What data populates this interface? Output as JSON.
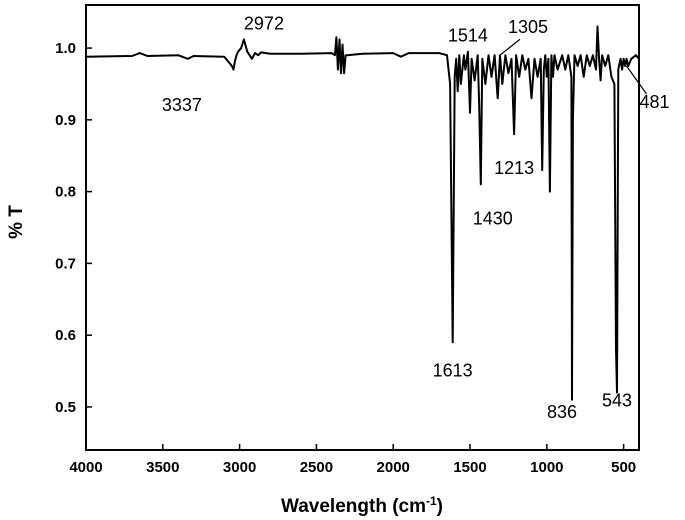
{
  "chart_data": {
    "type": "line",
    "xlabel_main": "Wavelength (cm",
    "xlabel_sup": "-1",
    "xlabel_tail": ")",
    "ylabel": "% T",
    "xlim": [
      4000,
      400
    ],
    "ylim": [
      0.44,
      1.06
    ],
    "x_ticks": [
      4000,
      3500,
      3000,
      2500,
      2000,
      1500,
      1000,
      500
    ],
    "y_ticks": [
      0.5,
      0.6,
      0.7,
      0.8,
      0.9,
      1.0
    ],
    "x_tick_labels": [
      "4000",
      "3500",
      "3000",
      "2500",
      "2000",
      "1500",
      "1000",
      "500"
    ],
    "y_tick_labels": [
      "0.5",
      "0.6",
      "0.7",
      "0.8",
      "0.9",
      "1.0"
    ],
    "grid": false,
    "series": [
      {
        "x": [
          4000,
          3700,
          3650,
          3600,
          3400,
          3337,
          3300,
          3100,
          3050,
          3040,
          3030,
          3020,
          3010,
          2990,
          2972,
          2950,
          2920,
          2900,
          2880,
          2860,
          2800,
          2600,
          2400,
          2380,
          2370,
          2360,
          2350,
          2340,
          2330,
          2320,
          2310,
          2300,
          2200,
          2000,
          1950,
          1900,
          1700,
          1650,
          1630,
          1613,
          1600,
          1590,
          1580,
          1570,
          1560,
          1540,
          1530,
          1514,
          1500,
          1490,
          1470,
          1450,
          1440,
          1430,
          1420,
          1400,
          1380,
          1360,
          1340,
          1320,
          1305,
          1290,
          1270,
          1250,
          1230,
          1213,
          1200,
          1180,
          1160,
          1140,
          1120,
          1100,
          1080,
          1060,
          1040,
          1030,
          1020,
          1010,
          1000,
          990,
          980,
          970,
          960,
          950,
          930,
          900,
          880,
          860,
          840,
          836,
          830,
          820,
          800,
          780,
          760,
          740,
          720,
          700,
          680,
          670,
          660,
          650,
          640,
          620,
          600,
          580,
          560,
          550,
          543,
          535,
          530,
          520,
          510,
          500,
          490,
          481,
          470,
          450,
          420,
          400
        ],
        "y": [
          0.988,
          0.989,
          0.993,
          0.989,
          0.99,
          0.985,
          0.989,
          0.988,
          0.975,
          0.97,
          0.982,
          0.99,
          0.995,
          1.0,
          1.012,
          0.995,
          0.985,
          0.993,
          0.99,
          0.994,
          0.992,
          0.992,
          0.993,
          0.99,
          1.015,
          0.97,
          1.012,
          0.965,
          1.005,
          0.965,
          0.99,
          0.99,
          0.992,
          0.993,
          0.988,
          0.993,
          0.993,
          0.99,
          0.95,
          0.59,
          0.96,
          0.985,
          0.94,
          0.99,
          0.95,
          0.99,
          0.97,
          0.995,
          0.91,
          0.985,
          0.955,
          0.99,
          0.92,
          0.81,
          0.985,
          0.95,
          0.99,
          0.96,
          0.99,
          0.93,
          0.99,
          0.95,
          0.99,
          0.965,
          0.985,
          0.88,
          0.99,
          0.96,
          0.99,
          0.97,
          0.985,
          0.93,
          0.985,
          0.96,
          0.985,
          0.83,
          0.97,
          0.99,
          0.96,
          0.985,
          0.8,
          0.99,
          0.96,
          0.99,
          0.97,
          0.99,
          0.97,
          0.99,
          0.96,
          0.51,
          0.9,
          0.99,
          0.975,
          0.99,
          0.96,
          0.99,
          0.975,
          0.99,
          0.97,
          1.03,
          0.985,
          0.955,
          0.99,
          0.975,
          0.99,
          0.96,
          0.95,
          0.58,
          0.52,
          0.97,
          0.975,
          0.985,
          0.97,
          0.985,
          0.975,
          0.985,
          0.975,
          0.985,
          0.99,
          0.985
        ]
      }
    ],
    "annotations": [
      {
        "text": "3337",
        "x": 3337,
        "y": 0.985
      },
      {
        "text": "2972",
        "x": 2972,
        "y": 1.012
      },
      {
        "text": "1514",
        "x": 1514,
        "y": 0.995
      },
      {
        "text": "1305",
        "x": 1305,
        "y": 0.99
      },
      {
        "text": "1213",
        "x": 1213,
        "y": 0.88
      },
      {
        "text": "1430",
        "x": 1430,
        "y": 0.81
      },
      {
        "text": "1613",
        "x": 1613,
        "y": 0.59
      },
      {
        "text": "836",
        "x": 836,
        "y": 0.51
      },
      {
        "text": "543",
        "x": 543,
        "y": 0.52
      },
      {
        "text": "481",
        "x": 481,
        "y": 0.975
      }
    ]
  }
}
